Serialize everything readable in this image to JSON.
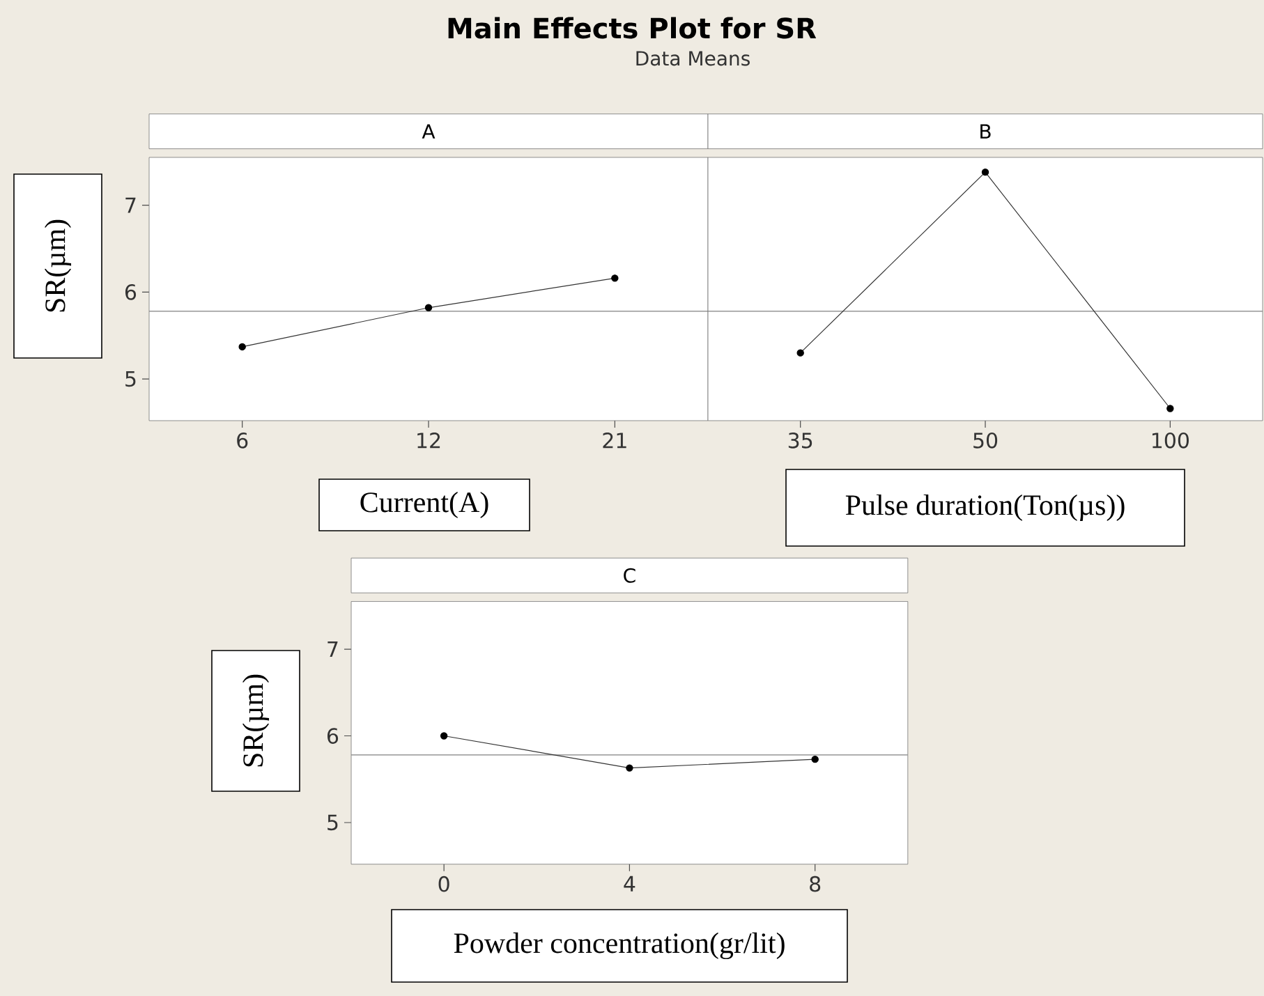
{
  "chart_data": [
    {
      "type": "line",
      "title": "A",
      "annotations": [
        "Main Effects Plot for SR",
        "Data Means"
      ],
      "ylabel": "SR(µm)",
      "xlabel": "Current(A)",
      "categories": [
        "6",
        "12",
        "21"
      ],
      "values": [
        5.37,
        5.82,
        6.16
      ],
      "color": "#333333",
      "marker": "circle",
      "ylim": [
        4.52,
        7.55
      ],
      "yticks": [
        5,
        6,
        7
      ],
      "ref_lines": [
        {
          "axis": "y",
          "value": 5.78,
          "color": "#808080"
        }
      ]
    },
    {
      "type": "line",
      "title": "B",
      "xlabel": "Pulse duration(Ton(µs))",
      "categories": [
        "35",
        "50",
        "100"
      ],
      "values": [
        5.3,
        7.38,
        4.66
      ],
      "color": "#333333",
      "marker": "circle",
      "ylim": [
        4.52,
        7.55
      ],
      "yticks": [
        5,
        6,
        7
      ],
      "tick_labels": "x",
      "ref_lines": [
        {
          "axis": "y",
          "value": 5.78,
          "color": "#808080"
        }
      ]
    },
    {
      "type": "line",
      "title": "C",
      "ylabel": "SR(µm)",
      "xlabel": "Powder concentration(gr/lit)",
      "categories": [
        "0",
        "4",
        "8"
      ],
      "values": [
        6.0,
        5.63,
        5.73
      ],
      "color": "#333333",
      "marker": "circle",
      "ylim": [
        4.52,
        7.55
      ],
      "yticks": [
        5,
        6,
        7
      ],
      "ref_lines": [
        {
          "axis": "y",
          "value": 5.78,
          "color": "#808080"
        }
      ]
    }
  ]
}
